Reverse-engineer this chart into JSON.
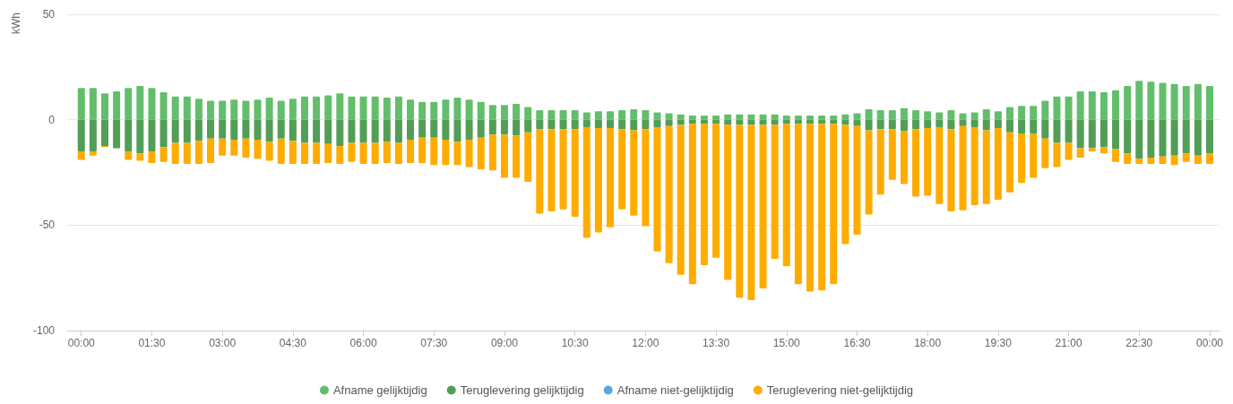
{
  "chart_data": {
    "type": "bar",
    "ylabel": "kWh",
    "stacked": true,
    "grid": "y",
    "legend": "bottom",
    "marker": "circle",
    "x": [
      0,
      0.25,
      0.5,
      0.75,
      1,
      1.25,
      1.5,
      1.75,
      2,
      2.25,
      2.5,
      2.75,
      3,
      3.25,
      3.5,
      3.75,
      4,
      4.25,
      4.5,
      4.75,
      5,
      5.25,
      5.5,
      5.75,
      6,
      6.25,
      6.5,
      6.75,
      7,
      7.25,
      7.5,
      7.75,
      8,
      8.25,
      8.5,
      8.75,
      9,
      9.25,
      9.5,
      9.75,
      10,
      10.25,
      10.5,
      10.75,
      11,
      11.25,
      11.5,
      11.75,
      12,
      12.25,
      12.5,
      12.75,
      13,
      13.25,
      13.5,
      13.75,
      14,
      14.25,
      14.5,
      14.75,
      15,
      15.25,
      15.5,
      15.75,
      16,
      16.25,
      16.5,
      16.75,
      17,
      17.25,
      17.5,
      17.75,
      18,
      18.25,
      18.5,
      18.75,
      19,
      19.25,
      19.5,
      19.75,
      20,
      20.25,
      20.5,
      20.75,
      21,
      21.25,
      21.5,
      21.75,
      22,
      22.25,
      22.5,
      22.75,
      23,
      23.25,
      23.5,
      23.75,
      24
    ],
    "xlim": [
      -0.3,
      24.2
    ],
    "xticks": [
      {
        "value": 0,
        "label": "00:00"
      },
      {
        "value": 1.5,
        "label": "01:30"
      },
      {
        "value": 3,
        "label": "03:00"
      },
      {
        "value": 4.5,
        "label": "04:30"
      },
      {
        "value": 6,
        "label": "06:00"
      },
      {
        "value": 7.5,
        "label": "07:30"
      },
      {
        "value": 9,
        "label": "09:00"
      },
      {
        "value": 10.5,
        "label": "10:30"
      },
      {
        "value": 12,
        "label": "12:00"
      },
      {
        "value": 13.5,
        "label": "13:30"
      },
      {
        "value": 15,
        "label": "15:00"
      },
      {
        "value": 16.5,
        "label": "16:30"
      },
      {
        "value": 18,
        "label": "18:00"
      },
      {
        "value": 19.5,
        "label": "19:30"
      },
      {
        "value": 21,
        "label": "21:00"
      },
      {
        "value": 22.5,
        "label": "22:30"
      },
      {
        "value": 24,
        "label": "00:00"
      }
    ],
    "ylim": [
      -100,
      50
    ],
    "yticks": [
      -100,
      -50,
      0,
      50
    ],
    "series": [
      {
        "name": "Afname gelijktijdig",
        "color": "#63be6b",
        "values": [
          15,
          15,
          12.5,
          13.5,
          15,
          16,
          15,
          13,
          11,
          11,
          10,
          9,
          9,
          9.5,
          9,
          9.5,
          10.5,
          9,
          10,
          11,
          11,
          11.5,
          12.5,
          11,
          11,
          11,
          10.5,
          11,
          9.5,
          8.5,
          8.5,
          9.5,
          10.5,
          9.5,
          8.5,
          7,
          7,
          7.5,
          6,
          4.5,
          4.5,
          4.5,
          4.5,
          3.5,
          4,
          4,
          4.5,
          5,
          4.5,
          3.5,
          3,
          2.5,
          2,
          2,
          2,
          2.5,
          2.5,
          2.5,
          2.5,
          2.5,
          2,
          2,
          2,
          2,
          2,
          2.5,
          3,
          5,
          4.5,
          4.5,
          5.5,
          4.5,
          4,
          3.5,
          4.5,
          3,
          3.5,
          5,
          4,
          6,
          6.5,
          6.5,
          9,
          11,
          11,
          13.5,
          13.5,
          13,
          14,
          16,
          18.5,
          18,
          17.5,
          17,
          16,
          17,
          16
        ]
      },
      {
        "name": "Teruglevering gelijktijdig",
        "color": "#529e57",
        "values": [
          -15,
          -15,
          -12.5,
          -13.5,
          -15,
          -16,
          -15,
          -13,
          -11,
          -11,
          -10,
          -9,
          -9,
          -9.5,
          -9,
          -9.5,
          -10.5,
          -9,
          -10,
          -11,
          -11,
          -11.5,
          -12.5,
          -11,
          -11,
          -11,
          -10.5,
          -11,
          -9.5,
          -8.5,
          -8.5,
          -9.5,
          -10.5,
          -9.5,
          -8.5,
          -7,
          -7,
          -7.5,
          -6,
          -4.5,
          -4.5,
          -4.5,
          -4.5,
          -3.5,
          -4,
          -4,
          -4.5,
          -5,
          -4.5,
          -3.5,
          -3,
          -2.5,
          -2,
          -2,
          -2,
          -2.5,
          -2.5,
          -2.5,
          -2.5,
          -2.5,
          -2,
          -2,
          -2,
          -2,
          -2,
          -2.5,
          -3,
          -5,
          -4.5,
          -4.5,
          -5.5,
          -4.5,
          -4,
          -3.5,
          -4.5,
          -3,
          -3.5,
          -5,
          -4,
          -6,
          -6.5,
          -6.5,
          -9,
          -11,
          -11,
          -13.5,
          -13.5,
          -13,
          -14,
          -16,
          -18.5,
          -18,
          -17.5,
          -17,
          -16,
          -17,
          -16
        ]
      },
      {
        "name": "Afname niet-gelijktijdig",
        "color": "#5aa5e0",
        "values": [
          0,
          0,
          0,
          0,
          0,
          0,
          0,
          0,
          0,
          0,
          0,
          0,
          0,
          0,
          0,
          0,
          0,
          0,
          0,
          0,
          0,
          0,
          0,
          0,
          0,
          0,
          0,
          0,
          0,
          0,
          0,
          0,
          0,
          0,
          0,
          0,
          0,
          0,
          0,
          0,
          0,
          0,
          0,
          0,
          0,
          0,
          0,
          0,
          0,
          0,
          0,
          0,
          0,
          0,
          0,
          0,
          0,
          0,
          0,
          0,
          0,
          0,
          0,
          0,
          0,
          0,
          0,
          0,
          0,
          0,
          0,
          0,
          0,
          0,
          0,
          0,
          0,
          0,
          0,
          0,
          0,
          0,
          0,
          0,
          0,
          0,
          0,
          0,
          0,
          0,
          0,
          0,
          0,
          0,
          0,
          0,
          0
        ]
      },
      {
        "name": "Teruglevering niet-gelijktijdig",
        "color": "#ffac00",
        "values": [
          -4,
          -2,
          -0.5,
          0,
          -4,
          -3.5,
          -5.5,
          -7,
          -10,
          -10,
          -11,
          -11.5,
          -8,
          -7.5,
          -9,
          -9,
          -9,
          -12,
          -11,
          -10,
          -10,
          -9,
          -8.5,
          -9,
          -10,
          -10,
          -10,
          -10,
          -11,
          -12,
          -13,
          -12,
          -11,
          -13,
          -15,
          -17,
          -20.5,
          -20,
          -23.5,
          -40,
          -39,
          -38,
          -41.5,
          -52.5,
          -49.5,
          -47,
          -38,
          -40.5,
          -46,
          -59,
          -65,
          -71,
          -76,
          -67,
          -63.5,
          -73.5,
          -82,
          -83,
          -77.5,
          -63.5,
          -67.5,
          -76,
          -79.5,
          -79,
          -76,
          -56.5,
          -51.5,
          -40,
          -31,
          -24,
          -25,
          -32,
          -32,
          -36.5,
          -39,
          -40,
          -37,
          -35,
          -34,
          -28.5,
          -23.5,
          -21,
          -14,
          -11.5,
          -8,
          -4.5,
          -1.5,
          -3,
          -6,
          -5,
          -2.5,
          -3,
          -3.5,
          -4.5,
          -4,
          -4,
          -5
        ]
      }
    ]
  }
}
